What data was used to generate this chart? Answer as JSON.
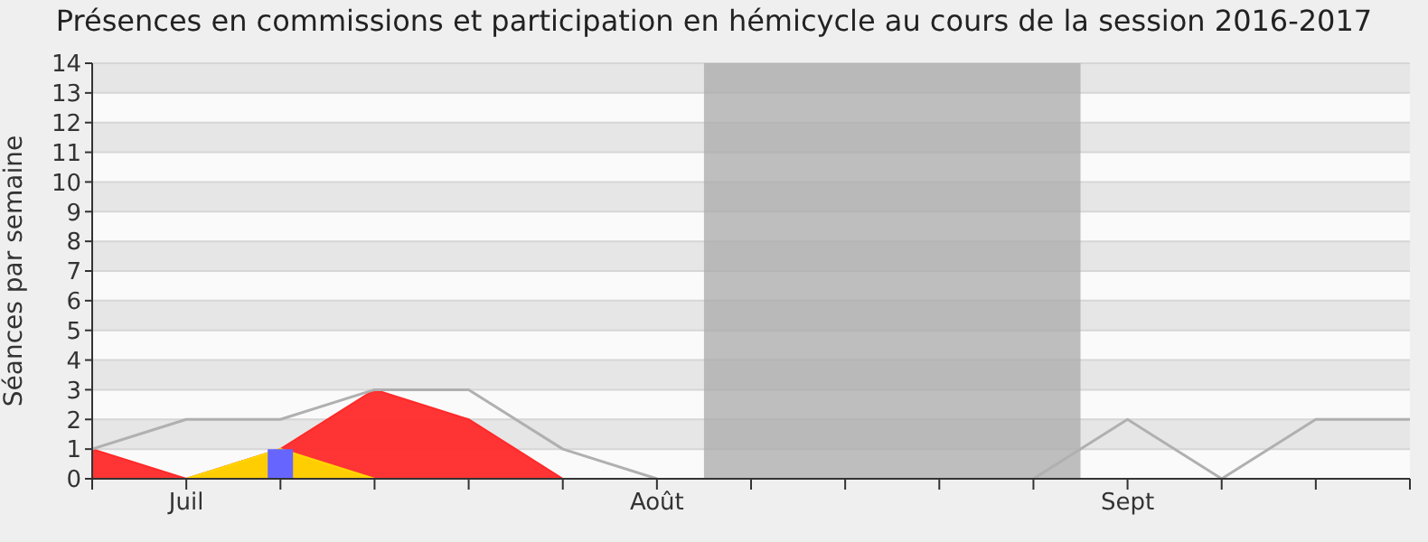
{
  "chart_data": {
    "type": "area",
    "title": "Présences en commissions et participation en hémicycle au cours de la session 2016-2017",
    "ylabel": "Séances par semaine",
    "categories": [
      null,
      "Juil",
      null,
      null,
      null,
      null,
      "Août",
      null,
      null,
      null,
      null,
      "Sept",
      null,
      null,
      null
    ],
    "ylim": [
      0,
      14
    ],
    "yticks": [
      0,
      1,
      2,
      3,
      4,
      5,
      6,
      7,
      8,
      9,
      10,
      11,
      12,
      13,
      14
    ],
    "grid": "y",
    "legend": false,
    "series": [
      {
        "type": "line",
        "color": "#b0b0b0",
        "values": [
          1,
          2,
          2,
          3,
          3,
          1,
          0,
          null,
          null,
          null,
          0,
          2,
          0,
          2,
          2
        ]
      },
      {
        "color": "#ff2a2a",
        "values": [
          1,
          0,
          1,
          3,
          2,
          0,
          0,
          0,
          0,
          0,
          0,
          0,
          0,
          0,
          0
        ]
      },
      {
        "color": "#ffd700",
        "values": [
          0,
          0,
          1,
          0,
          0,
          0,
          0,
          0,
          0,
          0,
          0,
          0,
          0,
          0,
          0
        ]
      },
      {
        "type": "bar",
        "color": "#6666ff",
        "values": [
          0,
          0,
          1,
          0,
          0,
          0,
          0,
          0,
          0,
          0,
          0,
          0,
          0,
          0,
          0
        ]
      }
    ]
  }
}
